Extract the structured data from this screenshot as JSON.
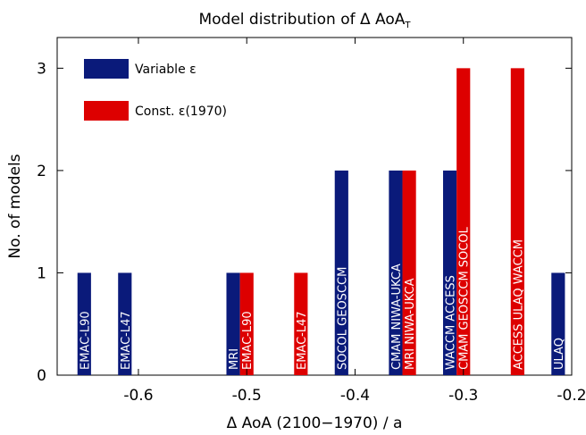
{
  "chart_data": {
    "type": "bar",
    "title_main": "Model distribution of Δ AoA",
    "title_sub": "T",
    "xlabel": "Δ AoA (2100−1970) / a",
    "ylabel": "No. of models",
    "xlim": [
      -0.675,
      -0.2
    ],
    "ylim": [
      0,
      3.3
    ],
    "xticks": [
      -0.6,
      -0.5,
      -0.4,
      -0.3,
      -0.2
    ],
    "xtick_labels": [
      "-0.6",
      "-0.5",
      "-0.4",
      "-0.3",
      "-0.2"
    ],
    "yticks": [
      0,
      1,
      2,
      3
    ],
    "ytick_labels": [
      "0",
      "1",
      "2",
      "3"
    ],
    "legend_position": "top-left",
    "bar_width": 0.0125,
    "series": [
      {
        "name": "Variable ε",
        "color": "#0a1a7a",
        "bars": [
          {
            "x": -0.65,
            "value": 1,
            "label": "EMAC-L90"
          },
          {
            "x": -0.6125,
            "value": 1,
            "label": "EMAC-L47"
          },
          {
            "x": -0.5125,
            "value": 1,
            "label": "MRI"
          },
          {
            "x": -0.4125,
            "value": 2,
            "label": "SOCOL GEOSCCM"
          },
          {
            "x": -0.3625,
            "value": 2,
            "label": "CMAM NIWA-UKCA"
          },
          {
            "x": -0.3125,
            "value": 2,
            "label": "WACCM ACCESS"
          },
          {
            "x": -0.2125,
            "value": 1,
            "label": "ULAQ"
          }
        ]
      },
      {
        "name": "Const. ε(1970)",
        "color": "#dd0000",
        "bars": [
          {
            "x": -0.5,
            "value": 1,
            "label": "EMAC-L90"
          },
          {
            "x": -0.45,
            "value": 1,
            "label": "EMAC-L47"
          },
          {
            "x": -0.35,
            "value": 2,
            "label": "MRI  NIWA-UKCA"
          },
          {
            "x": -0.3,
            "value": 3,
            "label": "CMAM GEOSCCM SOCOL"
          },
          {
            "x": -0.25,
            "value": 3,
            "label": "ACCESS ULAQ WACCM"
          }
        ]
      }
    ]
  }
}
